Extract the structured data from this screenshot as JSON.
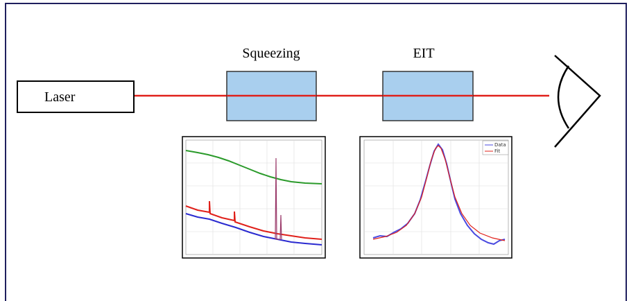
{
  "diagram": {
    "source": {
      "label": "Laser"
    },
    "elements": [
      {
        "label": "Squeezing"
      },
      {
        "label": "EIT"
      }
    ],
    "eit_plot": {
      "legend": [
        "Data",
        "Fit"
      ]
    }
  }
}
